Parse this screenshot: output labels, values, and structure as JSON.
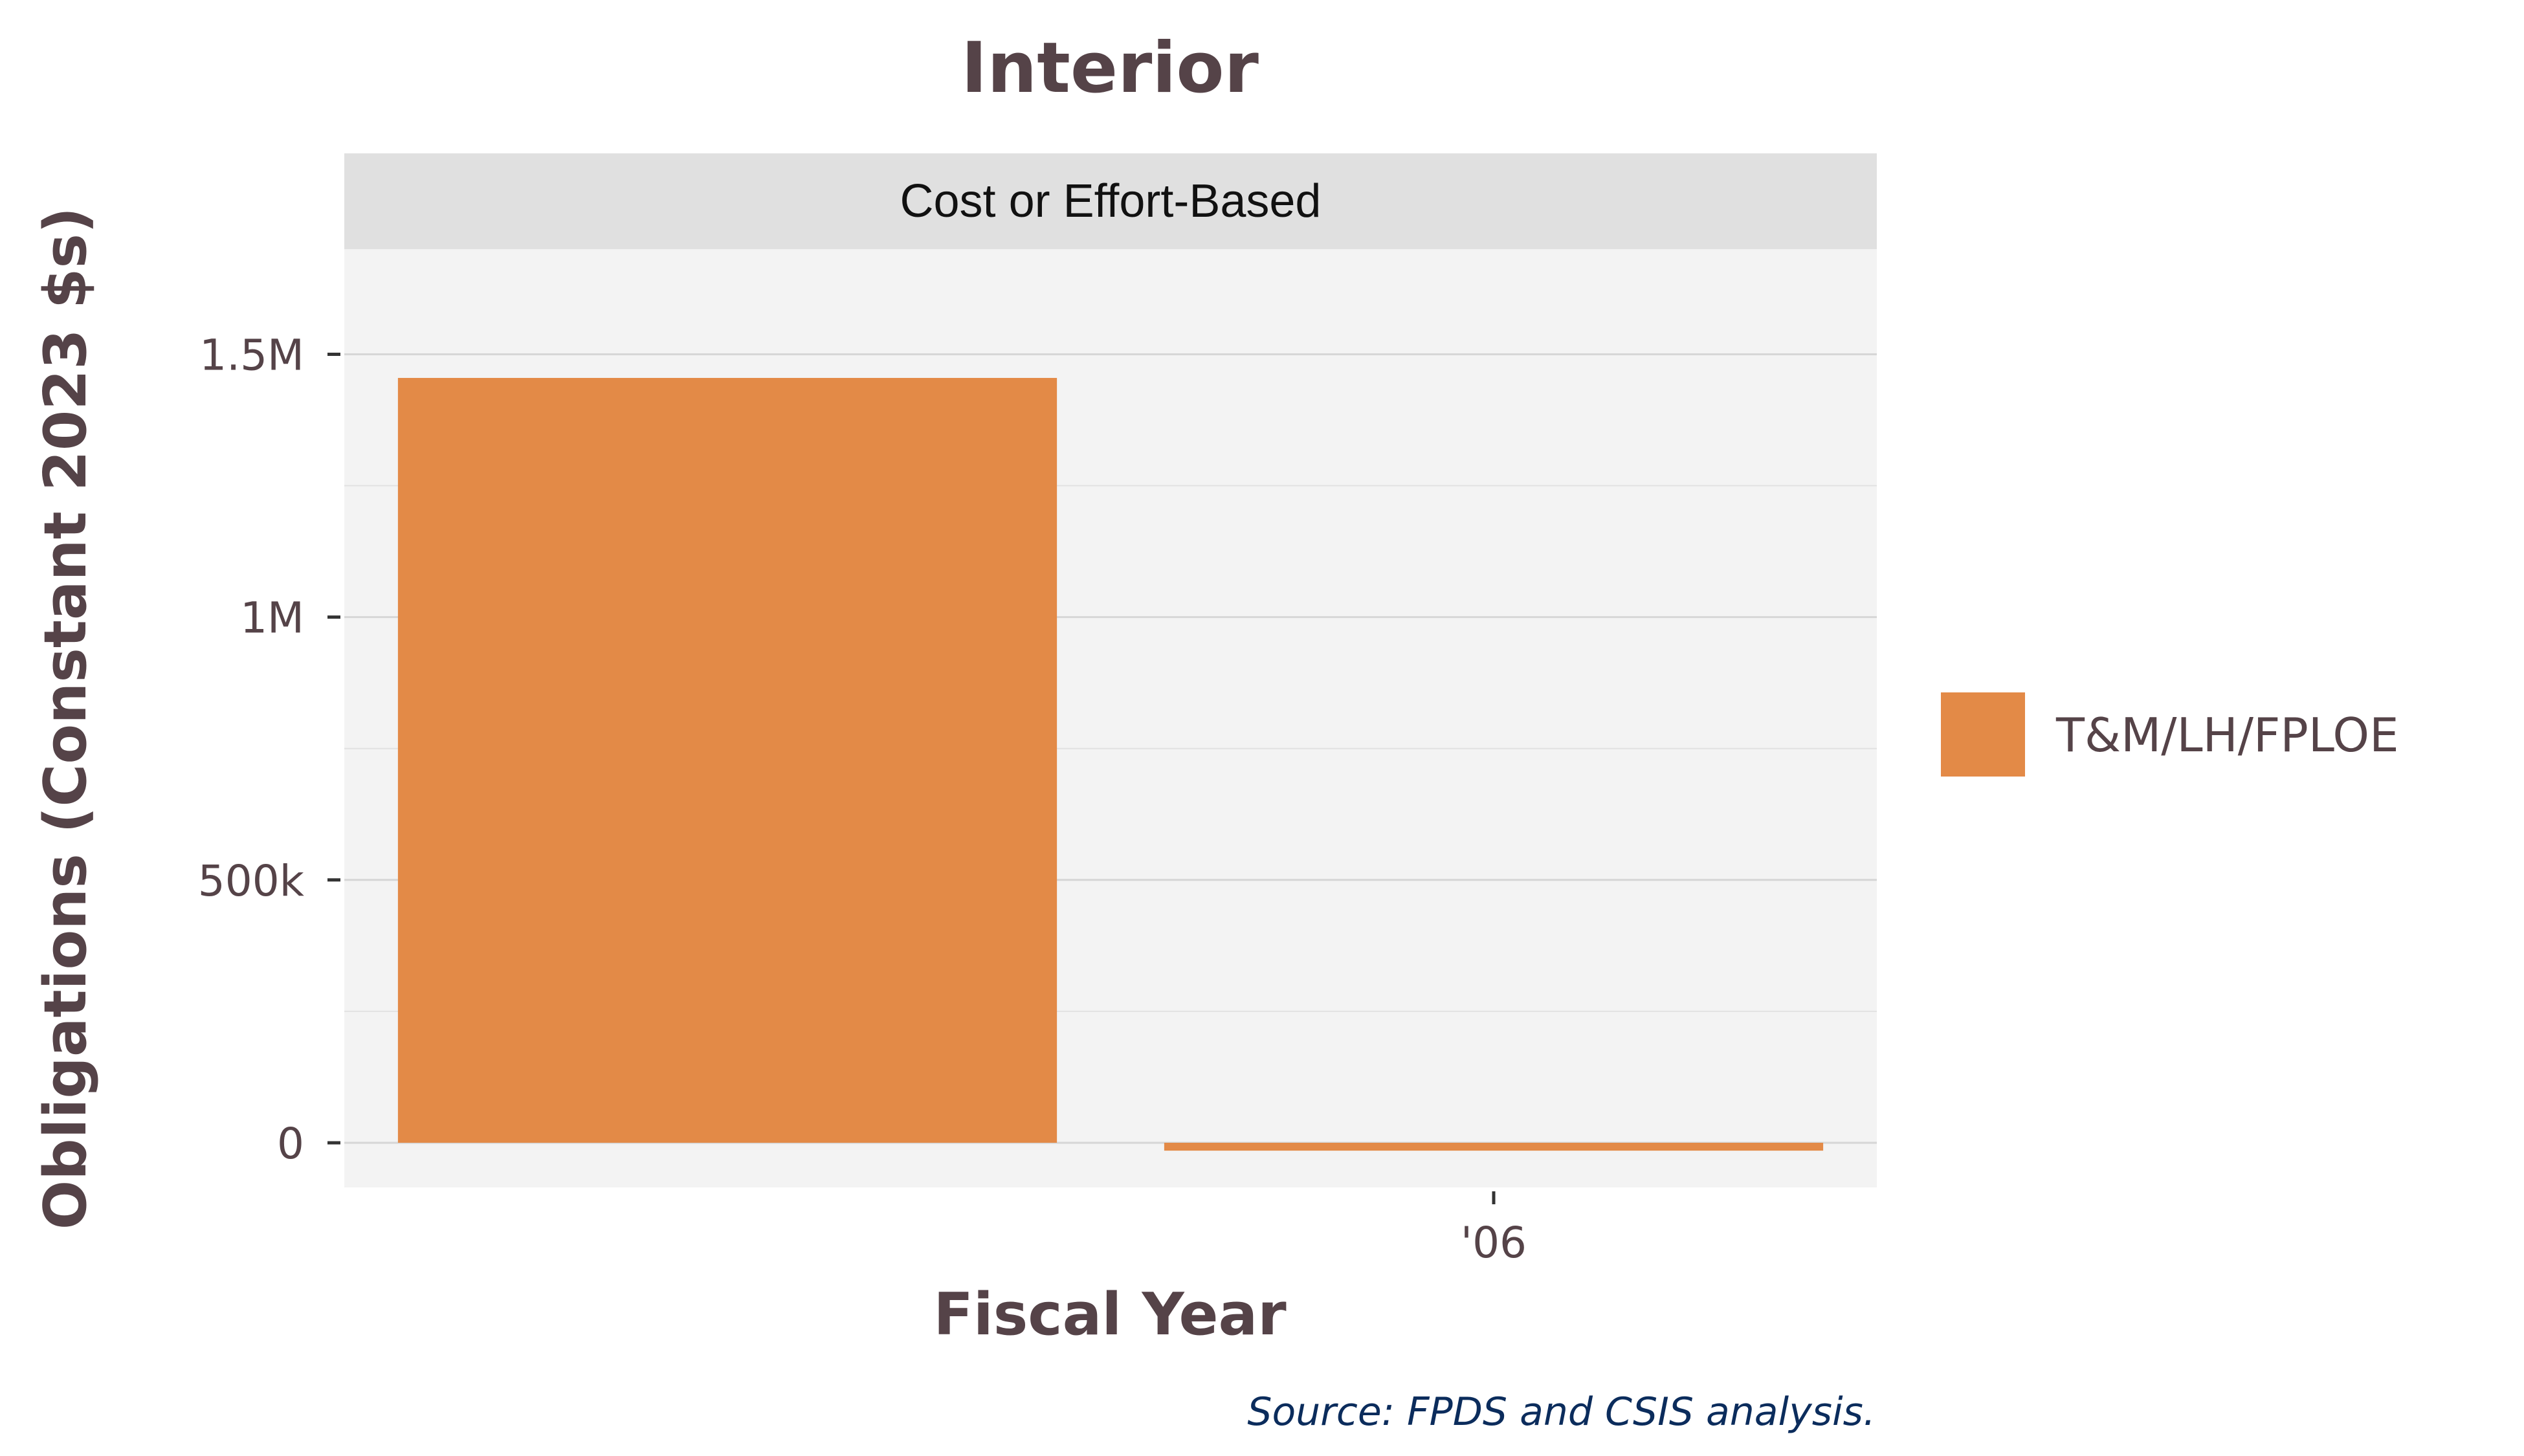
{
  "chart_data": {
    "type": "bar",
    "title": "Interior",
    "facet_label": "Cost or Effort-Based",
    "xlabel": "Fiscal Year",
    "ylabel": "Obligations (Constant 2023 $s)",
    "x_tick_labels": [
      "'06"
    ],
    "y_ticks": [
      {
        "value": 0,
        "label": "0"
      },
      {
        "value": 500000,
        "label": "500k"
      },
      {
        "value": 1000000,
        "label": "1M"
      },
      {
        "value": 1500000,
        "label": "1.5M"
      }
    ],
    "ylim": [
      -85000,
      1700000
    ],
    "grid": true,
    "legend_position": "right",
    "series": [
      {
        "name": "T&M/LH/FPLOE",
        "color": "#E38A47",
        "points": [
          {
            "x": "2005",
            "value": 1455000
          },
          {
            "x": "2006",
            "value": -15000
          }
        ]
      }
    ],
    "caption": "Source: FPDS and CSIS analysis."
  },
  "colors": {
    "text": "#554348",
    "caption": "#0b2c5c",
    "panel_background": "#f3f3f3",
    "strip_background": "#e0e0e0",
    "grid": "#d9d9d9"
  }
}
